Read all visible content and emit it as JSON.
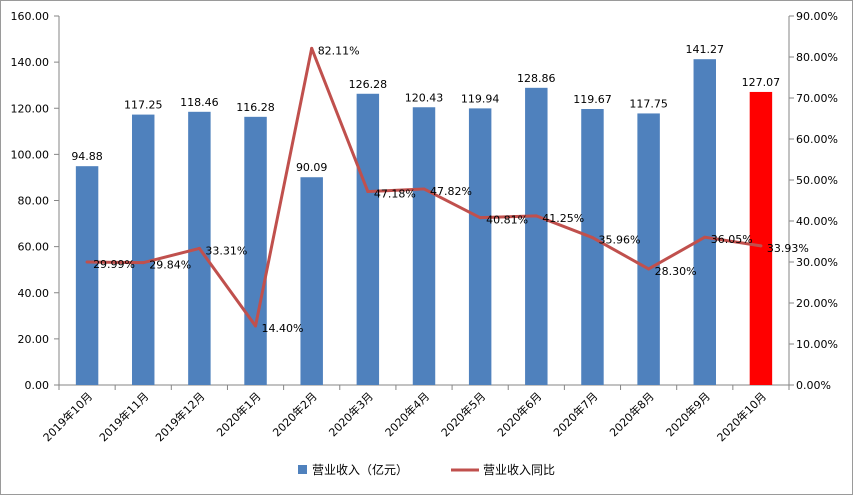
{
  "chart_data": {
    "type": "bar+line",
    "title": "",
    "categories": [
      "2019年10月",
      "2019年11月",
      "2019年12月",
      "2020年1月",
      "2020年2月",
      "2020年3月",
      "2020年4月",
      "2020年5月",
      "2020年6月",
      "2020年7月",
      "2020年8月",
      "2020年9月",
      "2020年10月"
    ],
    "series": [
      {
        "name": "营业收入（亿元）",
        "type": "bar",
        "axis": "left",
        "color": "#4f81bd",
        "highlight_color": "#ff0000",
        "highlight_index": 12,
        "values": [
          94.88,
          117.25,
          118.46,
          116.28,
          90.09,
          126.28,
          120.43,
          119.94,
          128.86,
          119.67,
          117.75,
          141.27,
          127.07
        ],
        "labels": [
          "94.88",
          "117.25",
          "118.46",
          "116.28",
          "90.09",
          "126.28",
          "120.43",
          "119.94",
          "128.86",
          "119.67",
          "117.75",
          "141.27",
          "127.07"
        ]
      },
      {
        "name": "营业收入同比",
        "type": "line",
        "axis": "right",
        "color": "#c0504d",
        "values": [
          29.99,
          29.84,
          33.31,
          14.4,
          82.11,
          47.18,
          47.82,
          40.81,
          41.25,
          35.96,
          28.3,
          36.05,
          33.93
        ],
        "labels": [
          "29.99%",
          "29.84%",
          "33.31%",
          "14.40%",
          "82.11%",
          "47.18%",
          "47.82%",
          "40.81%",
          "41.25%",
          "35.96%",
          "28.30%",
          "36.05%",
          "33.93%"
        ]
      }
    ],
    "y_left": {
      "min": 0,
      "max": 160,
      "step": 20,
      "ticks": [
        "0.00",
        "20.00",
        "40.00",
        "60.00",
        "80.00",
        "100.00",
        "120.00",
        "140.00",
        "160.00"
      ]
    },
    "y_right": {
      "min": 0,
      "max": 90,
      "step": 10,
      "ticks": [
        "0.00%",
        "10.00%",
        "20.00%",
        "30.00%",
        "40.00%",
        "50.00%",
        "60.00%",
        "70.00%",
        "80.00%",
        "90.00%"
      ]
    },
    "grid": false,
    "legend_position": "bottom"
  }
}
